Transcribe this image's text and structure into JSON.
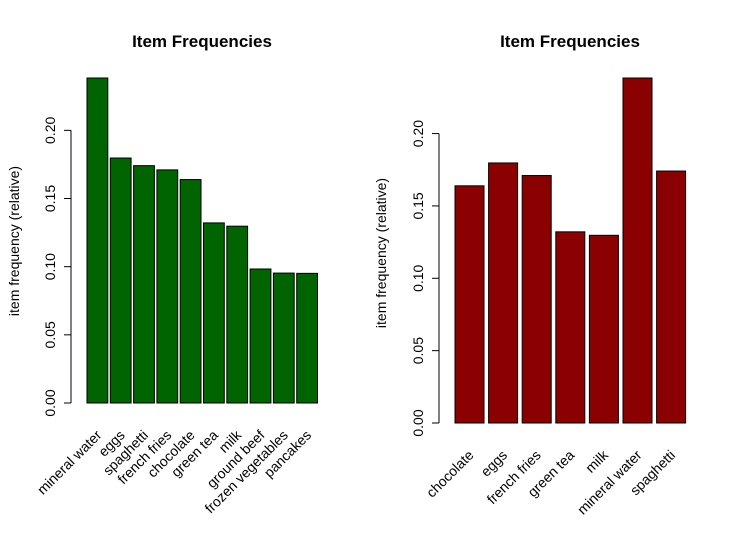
{
  "chart_data": [
    {
      "type": "bar",
      "title": "Item Frequencies",
      "xlabel": "",
      "ylabel": "item frequency (relative)",
      "ylim": [
        0,
        0.2384
      ],
      "yticks": [
        "0.00",
        "0.05",
        "0.10",
        "0.15",
        "0.20"
      ],
      "bar_color": "#006400",
      "categories": [
        "mineral water",
        "eggs",
        "spaghetti",
        "french fries",
        "chocolate",
        "green tea",
        "milk",
        "ground beef",
        "frozen vegetables",
        "pancakes"
      ],
      "values": [
        0.2384,
        0.1797,
        0.1741,
        0.171,
        0.1639,
        0.1321,
        0.1297,
        0.0983,
        0.0953,
        0.0951
      ]
    },
    {
      "type": "bar",
      "title": "Item Frequencies",
      "xlabel": "",
      "ylabel": "item frequency (relative)",
      "ylim": [
        0,
        0.2384
      ],
      "yticks": [
        "0.00",
        "0.05",
        "0.10",
        "0.15",
        "0.20"
      ],
      "bar_color": "#8B0000",
      "categories": [
        "chocolate",
        "eggs",
        "french fries",
        "green tea",
        "milk",
        "mineral water",
        "spaghetti"
      ],
      "values": [
        0.1639,
        0.1797,
        0.171,
        0.1321,
        0.1297,
        0.2384,
        0.1741
      ]
    }
  ]
}
